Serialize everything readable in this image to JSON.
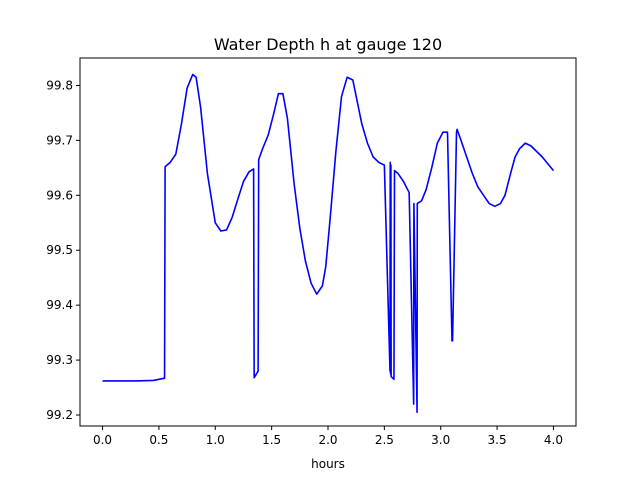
{
  "chart_data": {
    "type": "line",
    "title": "Water Depth h at gauge 120",
    "xlabel": "hours",
    "ylabel": "",
    "xlim": [
      -0.2,
      4.2
    ],
    "ylim": [
      99.18,
      99.85
    ],
    "x_ticks": [
      0.0,
      0.5,
      1.0,
      1.5,
      2.0,
      2.5,
      3.0,
      3.5,
      4.0
    ],
    "x_tick_labels": [
      "0.0",
      "0.5",
      "1.0",
      "1.5",
      "2.0",
      "2.5",
      "3.0",
      "3.5",
      "4.0"
    ],
    "y_ticks": [
      99.2,
      99.3,
      99.4,
      99.5,
      99.6,
      99.7,
      99.8
    ],
    "y_tick_labels": [
      "99.2",
      "99.3",
      "99.4",
      "99.5",
      "99.6",
      "99.7",
      "99.8"
    ],
    "grid": false,
    "legend": "none",
    "series": [
      {
        "color": "#0000ff",
        "x": [
          0.0,
          0.3,
          0.45,
          0.55,
          0.555,
          0.6,
          0.65,
          0.7,
          0.75,
          0.8,
          0.83,
          0.87,
          0.93,
          1.0,
          1.05,
          1.1,
          1.15,
          1.2,
          1.25,
          1.3,
          1.34,
          1.345,
          1.38,
          1.385,
          1.42,
          1.47,
          1.52,
          1.56,
          1.6,
          1.64,
          1.67,
          1.7,
          1.75,
          1.8,
          1.85,
          1.9,
          1.95,
          1.98,
          2.02,
          2.07,
          2.12,
          2.17,
          2.22,
          2.26,
          2.3,
          2.35,
          2.4,
          2.45,
          2.5,
          2.55,
          2.552,
          2.555,
          2.558,
          2.56,
          2.585,
          2.59,
          2.62,
          2.67,
          2.72,
          2.76,
          2.762,
          2.79,
          2.792,
          2.83,
          2.87,
          2.92,
          2.97,
          3.02,
          3.06,
          3.1,
          3.105,
          3.14,
          3.145,
          3.18,
          3.23,
          3.28,
          3.33,
          3.38,
          3.43,
          3.48,
          3.53,
          3.57,
          3.62,
          3.66,
          3.7,
          3.75,
          3.8,
          3.85,
          3.9,
          3.94,
          3.98,
          4.0
        ],
        "y": [
          99.262,
          99.262,
          99.263,
          99.267,
          99.652,
          99.66,
          99.675,
          99.73,
          99.795,
          99.82,
          99.815,
          99.76,
          99.64,
          99.55,
          99.535,
          99.537,
          99.56,
          99.593,
          99.625,
          99.643,
          99.648,
          99.268,
          99.28,
          99.665,
          99.685,
          99.71,
          99.75,
          99.785,
          99.785,
          99.74,
          99.68,
          99.62,
          99.54,
          99.48,
          99.44,
          99.42,
          99.435,
          99.47,
          99.56,
          99.68,
          99.78,
          99.815,
          99.81,
          99.77,
          99.73,
          99.695,
          99.67,
          99.66,
          99.655,
          99.28,
          99.66,
          99.275,
          99.655,
          99.27,
          99.265,
          99.645,
          99.64,
          99.625,
          99.605,
          99.22,
          99.585,
          99.205,
          99.585,
          99.59,
          99.61,
          99.65,
          99.695,
          99.715,
          99.715,
          99.335,
          99.335,
          99.715,
          99.72,
          99.7,
          99.67,
          99.64,
          99.615,
          99.6,
          99.585,
          99.58,
          99.585,
          99.6,
          99.64,
          99.67,
          99.685,
          99.695,
          99.69,
          99.68,
          99.67,
          99.66,
          99.65,
          99.645
        ]
      }
    ]
  }
}
